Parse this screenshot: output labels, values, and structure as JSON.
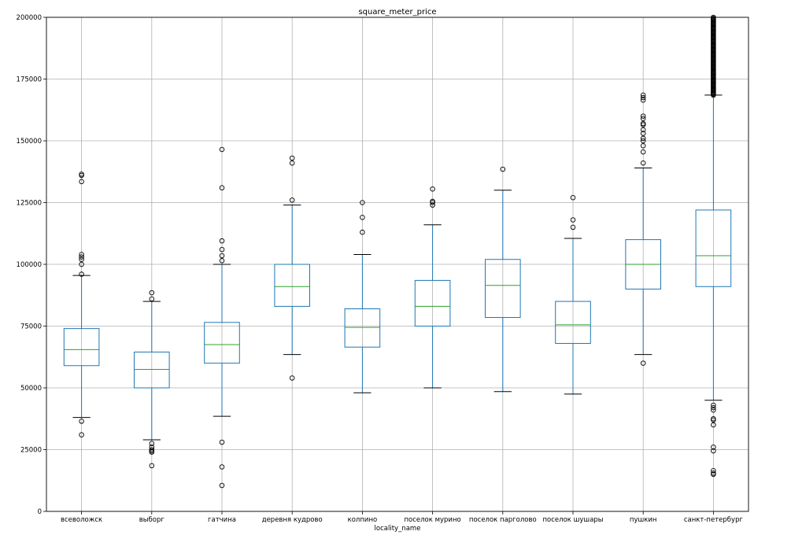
{
  "chart_data": {
    "type": "boxplot",
    "title": "square_meter_price",
    "xlabel": "locality_name",
    "ylabel": "",
    "ylim": [
      0,
      200000
    ],
    "yticks": [
      0,
      25000,
      50000,
      75000,
      100000,
      125000,
      150000,
      175000,
      200000
    ],
    "ytick_labels": [
      "0",
      "25000",
      "50000",
      "75000",
      "100000",
      "125000",
      "150000",
      "175000",
      "200000"
    ],
    "grid": true,
    "categories": [
      "всеволожск",
      "выборг",
      "гатчина",
      "деревня кудрово",
      "колпино",
      "поселок мурино",
      "поселок парголово",
      "поселок шушары",
      "пушкин",
      "санкт-петербург"
    ],
    "boxes": [
      {
        "name": "всеволожск",
        "whislo": 38000,
        "q1": 59000,
        "med": 65500,
        "q3": 74000,
        "whishi": 95500,
        "fliers": [
          31000,
          36500,
          96000,
          100000,
          102000,
          103000,
          104000,
          133500,
          136000,
          136500
        ]
      },
      {
        "name": "выборг",
        "whislo": 29000,
        "q1": 50000,
        "med": 57500,
        "q3": 64500,
        "whishi": 85000,
        "fliers": [
          18500,
          24000,
          24500,
          25000,
          26000,
          27500,
          86000,
          88500
        ]
      },
      {
        "name": "гатчина",
        "whislo": 38500,
        "q1": 60000,
        "med": 67500,
        "q3": 76500,
        "whishi": 100000,
        "fliers": [
          10500,
          18000,
          28000,
          101500,
          103500,
          106000,
          109500,
          131000,
          146500
        ]
      },
      {
        "name": "деревня кудрово",
        "whislo": 63500,
        "q1": 83000,
        "med": 91000,
        "q3": 100000,
        "whishi": 124000,
        "fliers": [
          54000,
          126000,
          141000,
          143000
        ]
      },
      {
        "name": "колпино",
        "whislo": 48000,
        "q1": 66500,
        "med": 74500,
        "q3": 82000,
        "whishi": 104000,
        "fliers": [
          113000,
          119000,
          125000
        ]
      },
      {
        "name": "поселок мурино",
        "whislo": 50000,
        "q1": 75000,
        "med": 83000,
        "q3": 93500,
        "whishi": 116000,
        "fliers": [
          124000,
          125000,
          125500,
          130500
        ]
      },
      {
        "name": "поселок парголово",
        "whislo": 48500,
        "q1": 78500,
        "med": 91500,
        "q3": 102000,
        "whishi": 130000,
        "fliers": [
          138500
        ]
      },
      {
        "name": "поселок шушары",
        "whislo": 47500,
        "q1": 68000,
        "med": 75500,
        "q3": 85000,
        "whishi": 110500,
        "fliers": [
          115000,
          118000,
          127000
        ]
      },
      {
        "name": "пушкин",
        "whislo": 63500,
        "q1": 90000,
        "med": 100000,
        "q3": 110000,
        "whishi": 139000,
        "fliers": [
          60000,
          141000,
          145500,
          148000,
          150000,
          151000,
          153000,
          154500,
          156500,
          157000,
          159000,
          160000,
          166500,
          167500,
          168500
        ]
      },
      {
        "name": "санкт-петербург",
        "whislo": 45000,
        "q1": 91000,
        "med": 103500,
        "q3": 122000,
        "whishi": 168500,
        "fliers": [
          15000,
          15500,
          16500,
          24500,
          26000,
          35000,
          37000,
          37500,
          41000,
          42000,
          43000
        ],
        "dense_flier_range": [
          168500,
          200000
        ]
      }
    ]
  }
}
